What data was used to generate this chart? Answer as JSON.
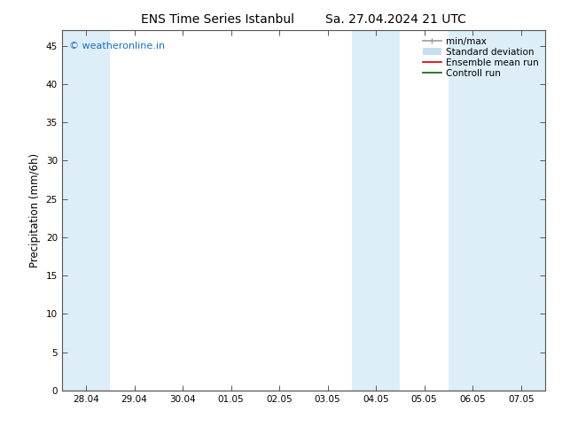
{
  "title_left": "ENS Time Series Istanbul",
  "title_right": "Sa. 27.04.2024 21 UTC",
  "ylabel": "Precipitation (mm/6h)",
  "ylim": [
    0,
    47
  ],
  "yticks": [
    0,
    5,
    10,
    15,
    20,
    25,
    30,
    35,
    40,
    45
  ],
  "x_tick_labels": [
    "28.04",
    "29.04",
    "30.04",
    "01.05",
    "02.05",
    "03.05",
    "04.05",
    "05.05",
    "06.05",
    "07.05"
  ],
  "x_tick_positions": [
    0,
    1,
    2,
    3,
    4,
    5,
    6,
    7,
    8,
    9
  ],
  "x_min": -0.5,
  "x_max": 9.5,
  "shade_regions": [
    {
      "x_start": -0.5,
      "x_end": 0.5,
      "color": "#ddeef8"
    },
    {
      "x_start": 5.5,
      "x_end": 6.5,
      "color": "#ddeef8"
    },
    {
      "x_start": 7.5,
      "x_end": 8.5,
      "color": "#ddeef8"
    },
    {
      "x_start": 8.5,
      "x_end": 9.5,
      "color": "#ddeef8"
    }
  ],
  "legend_entries": [
    {
      "label": "min/max",
      "color": "#999999",
      "lw": 1.2
    },
    {
      "label": "Standard deviation",
      "color": "#c8dced",
      "lw": 5
    },
    {
      "label": "Ensemble mean run",
      "color": "#cc0000",
      "lw": 1.2
    },
    {
      "label": "Controll run",
      "color": "#006600",
      "lw": 1.2
    }
  ],
  "watermark": "© weatheronline.in",
  "watermark_color": "#1a6fba",
  "bg_color": "#ffffff",
  "title_fontsize": 10,
  "tick_fontsize": 7.5,
  "ylabel_fontsize": 8.5,
  "legend_fontsize": 7.5
}
